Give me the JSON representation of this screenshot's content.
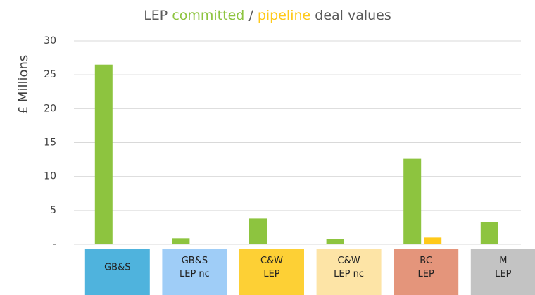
{
  "chart_data": {
    "type": "bar",
    "title_prefix": "LEP",
    "title_separator": "/",
    "title_suffix": "deal values",
    "y_label": "£ Millions",
    "categories": [
      [
        "GB&S"
      ],
      [
        "GB&S",
        "LEP nc"
      ],
      [
        "C&W",
        "LEP"
      ],
      [
        "C&W",
        "LEP nc"
      ],
      [
        "BC",
        "LEP"
      ],
      [
        "M",
        "LEP"
      ]
    ],
    "category_colors": [
      "#4fb3dd",
      "#9fcdf7",
      "#fdd035",
      "#fde4a6",
      "#e4957b",
      "#c3c3c3"
    ],
    "series": [
      {
        "name": "committed",
        "color": "#8dc43f",
        "values": [
          26.5,
          0.9,
          3.8,
          0.8,
          12.6,
          3.3
        ]
      },
      {
        "name": "pipeline",
        "color": "#ffc91a",
        "values": [
          0,
          0,
          0,
          0,
          1.0,
          0
        ]
      }
    ],
    "ylim": [
      0,
      30
    ],
    "yticks": [
      {
        "value": 0,
        "label": "-"
      },
      5,
      10,
      15,
      20,
      25,
      30
    ],
    "grid": true
  }
}
